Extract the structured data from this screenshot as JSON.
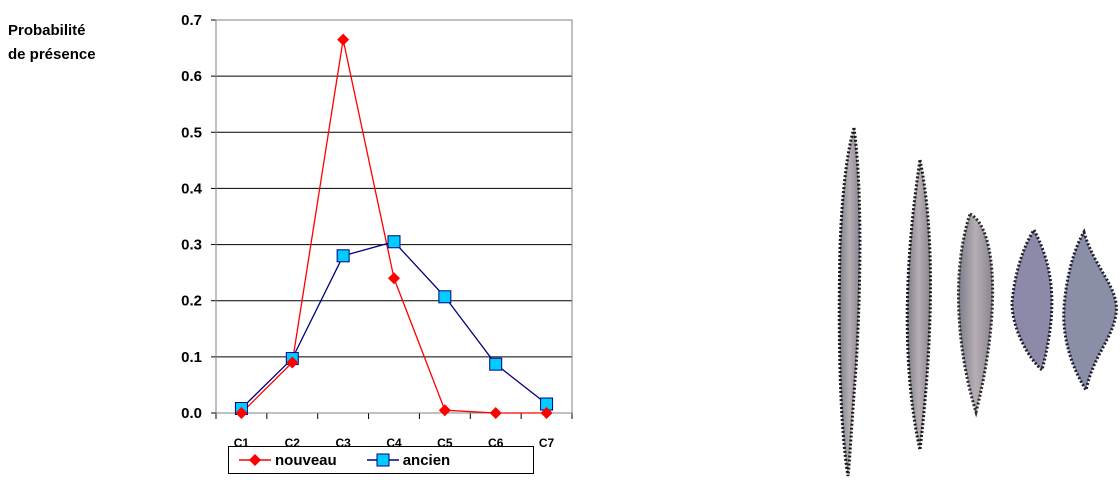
{
  "chart_data": {
    "type": "line",
    "ylabel_lines": [
      "Probabilité",
      "de présence"
    ],
    "categories": [
      "C1",
      "C2",
      "C3",
      "C4",
      "C5",
      "C6",
      "C7"
    ],
    "ylim": [
      0,
      0.7
    ],
    "yticks": [
      "0.0",
      "0.1",
      "0.2",
      "0.3",
      "0.4",
      "0.5",
      "0.6",
      "0.7"
    ],
    "grid": true,
    "legend_position": "bottom",
    "series": [
      {
        "name": "nouveau",
        "color": "#ff0000",
        "marker": "diamond",
        "values": [
          0.0,
          0.09,
          0.665,
          0.24,
          0.005,
          0.0,
          0.0
        ]
      },
      {
        "name": "ancien",
        "color": "#000080",
        "marker_fill": "#00ccff",
        "marker": "square",
        "values": [
          0.008,
          0.097,
          0.28,
          0.305,
          0.207,
          0.087,
          0.016
        ]
      }
    ]
  },
  "image": {
    "description_icon": "diatom-cells-icon"
  }
}
